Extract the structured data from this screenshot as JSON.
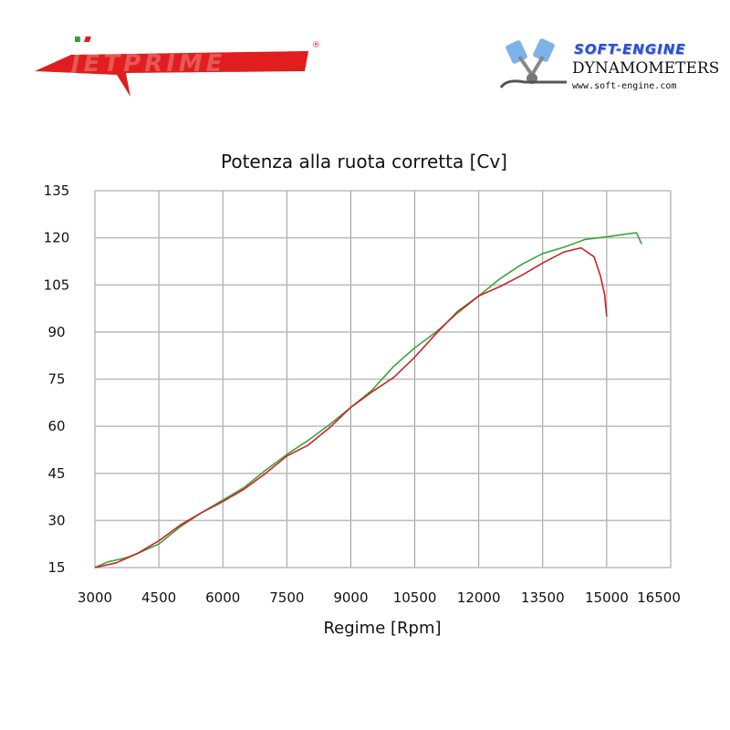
{
  "logos": {
    "left": {
      "text": "JETPRIME",
      "mark": "®",
      "color": "#e01e1e"
    },
    "right": {
      "title": "SOFT-ENGINE",
      "subtitle": "DYNAMOMETERS",
      "url": "www.soft-engine.com",
      "small": "SOFT-ENGINE"
    }
  },
  "chart_data": {
    "type": "line",
    "title": "Potenza alla ruota corretta [Cv]",
    "xlabel": "Regime [Rpm]",
    "ylabel": "",
    "xlim": [
      3000,
      16500
    ],
    "ylim": [
      15,
      135
    ],
    "xticks": [
      3000,
      4500,
      6000,
      7500,
      9000,
      10500,
      12000,
      13500,
      15000,
      16500
    ],
    "yticks": [
      15,
      30,
      45,
      60,
      75,
      90,
      105,
      120,
      135
    ],
    "grid": true,
    "series": [
      {
        "color": "#3aa53a",
        "x": [
          3000,
          3300,
          3700,
          4000,
          4500,
          5000,
          5500,
          6000,
          6500,
          7000,
          7500,
          8000,
          8500,
          9000,
          9500,
          10000,
          10500,
          11000,
          11500,
          12000,
          12500,
          13000,
          13500,
          14000,
          14500,
          15000,
          15500,
          15700,
          15820
        ],
        "y": [
          15,
          16.8,
          18,
          19.5,
          22.5,
          28,
          32.5,
          36.5,
          40.5,
          46,
          51,
          55.5,
          60.5,
          66,
          71.5,
          79,
          85,
          90,
          96,
          101.5,
          107,
          111.5,
          115,
          117,
          119.5,
          120.3,
          121.3,
          121.6,
          118
        ]
      },
      {
        "color": "#d0202a",
        "x": [
          3000,
          3500,
          4000,
          4500,
          5000,
          5500,
          6000,
          6500,
          7000,
          7500,
          8000,
          8500,
          9000,
          9500,
          10000,
          10500,
          11000,
          11500,
          12000,
          12500,
          13000,
          13500,
          14000,
          14400,
          14700,
          14850,
          14950,
          15000
        ],
        "y": [
          15,
          16.5,
          19.5,
          23.5,
          28.5,
          32.5,
          36,
          40,
          45,
          50.5,
          54,
          59.5,
          66,
          71,
          75.5,
          82,
          89.5,
          96.5,
          101.5,
          104.5,
          108,
          112,
          115.5,
          116.8,
          114,
          108,
          102,
          95
        ]
      }
    ]
  }
}
